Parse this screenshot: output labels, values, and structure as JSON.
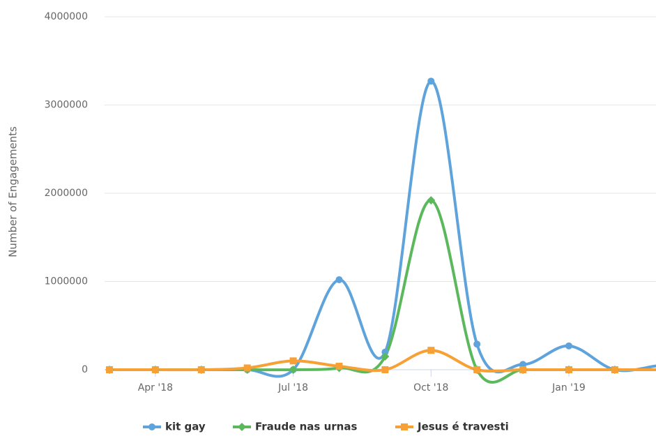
{
  "chart_data": {
    "type": "line",
    "smooth": true,
    "y_label": "Number of Engagements",
    "categories": [
      null,
      "Apr '18",
      null,
      null,
      "Jul '18",
      null,
      null,
      "Oct '18",
      null,
      null,
      "Jan '19",
      null,
      null
    ],
    "series": [
      {
        "name": "kit gay",
        "color": "#5ea3db",
        "marker": "circle",
        "values": [
          0,
          0,
          0,
          0,
          0,
          1020000,
          200000,
          3270000,
          290000,
          60000,
          270000,
          0,
          50000
        ]
      },
      {
        "name": "Fraude nas urnas",
        "color": "#5cb85c",
        "marker": "diamond",
        "values": [
          0,
          0,
          0,
          0,
          0,
          20000,
          150000,
          1920000,
          0,
          0,
          0,
          0,
          0
        ]
      },
      {
        "name": "Jesus é travesti",
        "color": "#f7a035",
        "marker": "square",
        "values": [
          0,
          0,
          0,
          20000,
          100000,
          40000,
          0,
          220000,
          0,
          0,
          0,
          0,
          0
        ]
      }
    ],
    "ylim": [
      0,
      4000000
    ],
    "yticks": [
      0,
      1000000,
      2000000,
      3000000,
      4000000
    ],
    "grid": true,
    "legend": "bottom"
  }
}
